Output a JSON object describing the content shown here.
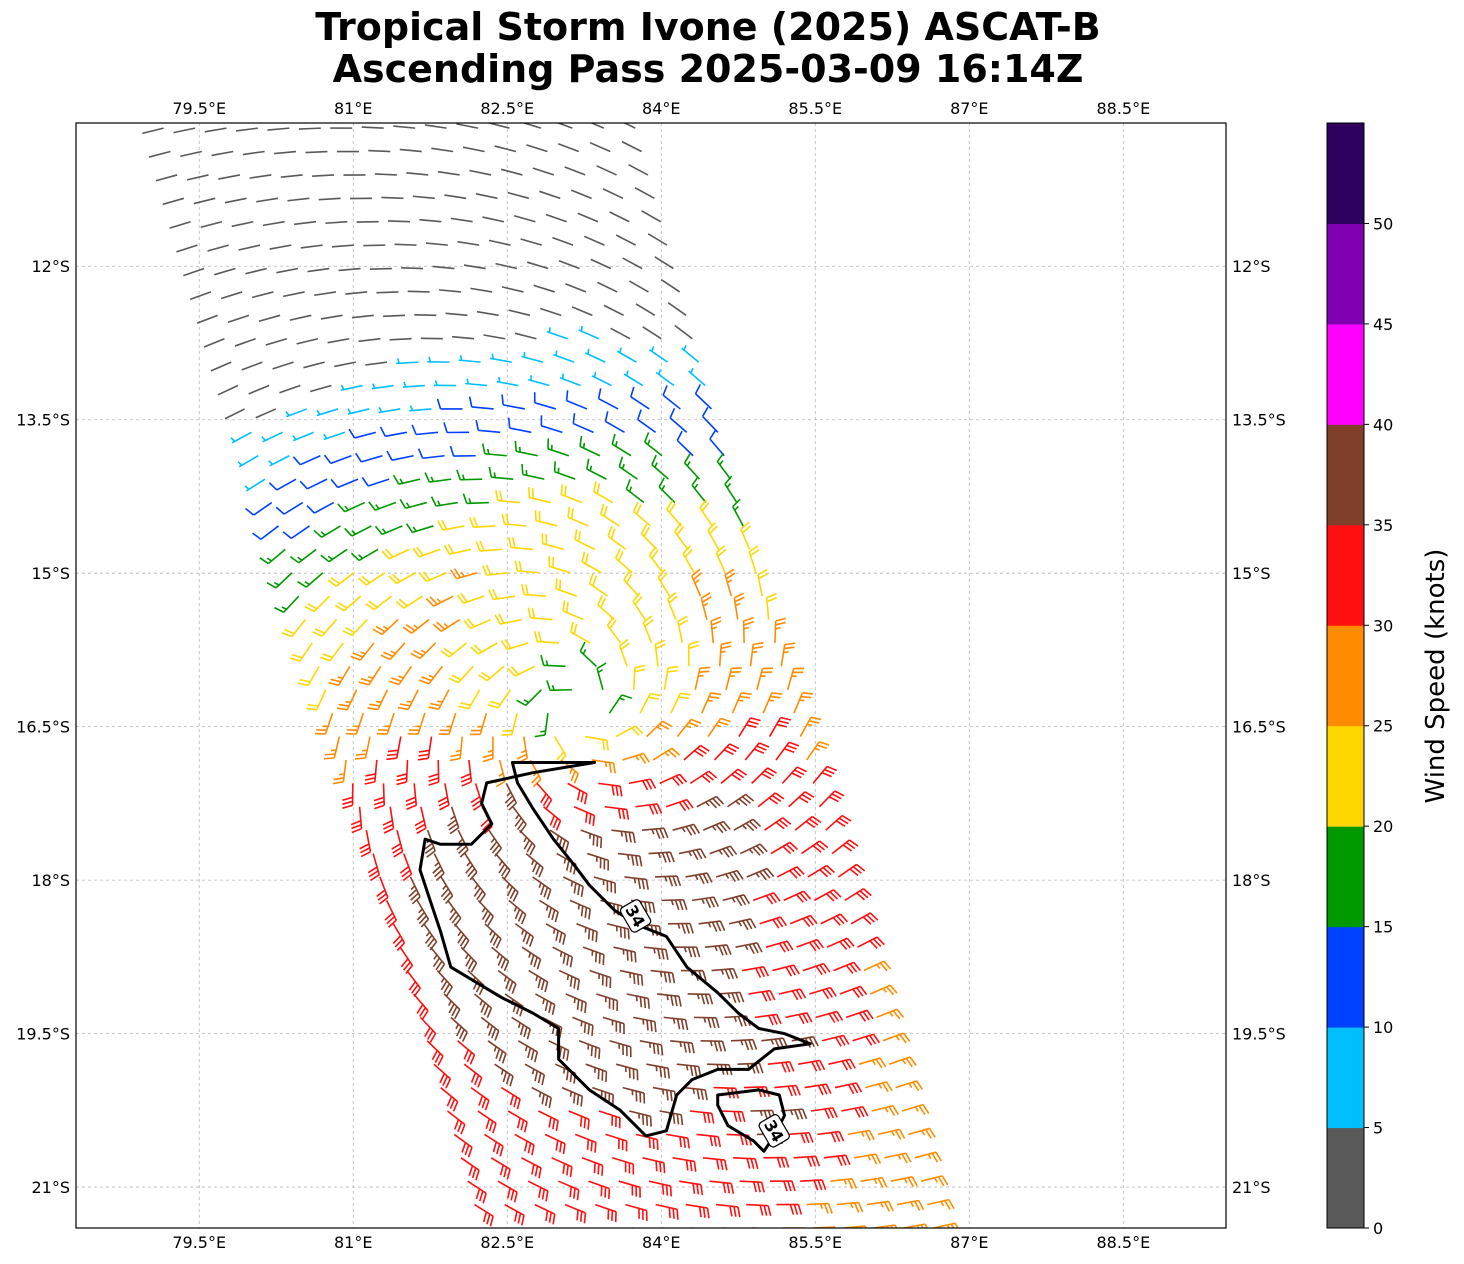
{
  "figure": {
    "title_line1": "Tropical Storm Ivone (2025) ASCAT-B",
    "title_line2": "Ascending Pass 2025-03-09 16:14Z"
  },
  "map": {
    "lon_range": [
      78.3,
      89.5
    ],
    "lat_range": [
      -21.4,
      -10.6
    ],
    "lon_ticks": [
      79.5,
      81,
      82.5,
      84,
      85.5,
      87,
      88.5
    ],
    "lon_tick_labels": [
      "79.5°E",
      "81°E",
      "82.5°E",
      "84°E",
      "85.5°E",
      "87°E",
      "88.5°E"
    ],
    "lat_ticks": [
      -12,
      -13.5,
      -15,
      -16.5,
      -18,
      -19.5,
      -21
    ],
    "lat_tick_labels": [
      "12°S",
      "13.5°S",
      "15°S",
      "16.5°S",
      "18°S",
      "19.5°S",
      "21°S"
    ],
    "gridlines": true,
    "storm_center": {
      "lon": 83.2,
      "lat": -16.3
    },
    "swath": {
      "top_lon_range": [
        79.0,
        83.9
      ],
      "bottom_lon_range": [
        82.1,
        86.8
      ]
    },
    "contour_34kt": {
      "label": "34",
      "main": [
        [
          83.35,
          -16.85
        ],
        [
          82.75,
          -16.95
        ],
        [
          82.3,
          -17.05
        ],
        [
          82.25,
          -17.25
        ],
        [
          82.35,
          -17.45
        ],
        [
          82.15,
          -17.65
        ],
        [
          81.85,
          -17.65
        ],
        [
          81.7,
          -17.6
        ],
        [
          81.65,
          -17.9
        ],
        [
          81.75,
          -18.2
        ],
        [
          81.85,
          -18.5
        ],
        [
          81.95,
          -18.85
        ],
        [
          82.2,
          -19.0
        ],
        [
          82.45,
          -19.15
        ],
        [
          82.75,
          -19.3
        ],
        [
          83.0,
          -19.45
        ],
        [
          83.0,
          -19.75
        ],
        [
          83.3,
          -20.05
        ],
        [
          83.6,
          -20.25
        ],
        [
          83.85,
          -20.5
        ],
        [
          84.05,
          -20.45
        ],
        [
          84.15,
          -20.1
        ],
        [
          84.3,
          -19.95
        ],
        [
          84.55,
          -19.85
        ],
        [
          84.85,
          -19.85
        ],
        [
          85.1,
          -19.65
        ],
        [
          85.45,
          -19.6
        ],
        [
          85.2,
          -19.5
        ],
        [
          84.95,
          -19.45
        ],
        [
          84.75,
          -19.3
        ],
        [
          84.55,
          -19.1
        ],
        [
          84.25,
          -18.85
        ],
        [
          84.05,
          -18.55
        ],
        [
          83.8,
          -18.45
        ],
        [
          83.55,
          -18.3
        ],
        [
          83.3,
          -18.05
        ],
        [
          83.15,
          -17.85
        ],
        [
          82.95,
          -17.6
        ],
        [
          82.75,
          -17.3
        ],
        [
          82.6,
          -17.05
        ],
        [
          82.55,
          -16.85
        ]
      ],
      "secondary": [
        [
          84.55,
          -20.1
        ],
        [
          84.95,
          -20.05
        ],
        [
          85.15,
          -20.1
        ],
        [
          85.2,
          -20.3
        ],
        [
          85.1,
          -20.5
        ],
        [
          85.0,
          -20.65
        ],
        [
          84.9,
          -20.55
        ],
        [
          84.65,
          -20.4
        ],
        [
          84.55,
          -20.2
        ]
      ]
    },
    "legend_labels": [
      {
        "text": "34",
        "lon": 83.75,
        "lat": -18.35
      },
      {
        "text": "34",
        "lon": 85.1,
        "lat": -20.45
      }
    ]
  },
  "colorbar": {
    "label": "Wind Speed (knots)",
    "tick_values": [
      0,
      5,
      10,
      15,
      20,
      25,
      30,
      35,
      40,
      45,
      50
    ],
    "tick_labels": [
      "0",
      "5",
      "10",
      "15",
      "20",
      "25",
      "30",
      "35",
      "40",
      "45",
      "50"
    ],
    "max": 55,
    "bins": [
      {
        "from": 0,
        "to": 5,
        "color": "#595959"
      },
      {
        "from": 5,
        "to": 10,
        "color": "#00bfff"
      },
      {
        "from": 10,
        "to": 15,
        "color": "#0040ff"
      },
      {
        "from": 15,
        "to": 20,
        "color": "#009900"
      },
      {
        "from": 20,
        "to": 25,
        "color": "#ffd700"
      },
      {
        "from": 25,
        "to": 30,
        "color": "#ff8c00"
      },
      {
        "from": 30,
        "to": 35,
        "color": "#ff0f0f"
      },
      {
        "from": 35,
        "to": 40,
        "color": "#7f3f2a"
      },
      {
        "from": 40,
        "to": 45,
        "color": "#ff00ff"
      },
      {
        "from": 45,
        "to": 50,
        "color": "#8000b3"
      },
      {
        "from": 50,
        "to": 55,
        "color": "#2e0060"
      }
    ]
  }
}
